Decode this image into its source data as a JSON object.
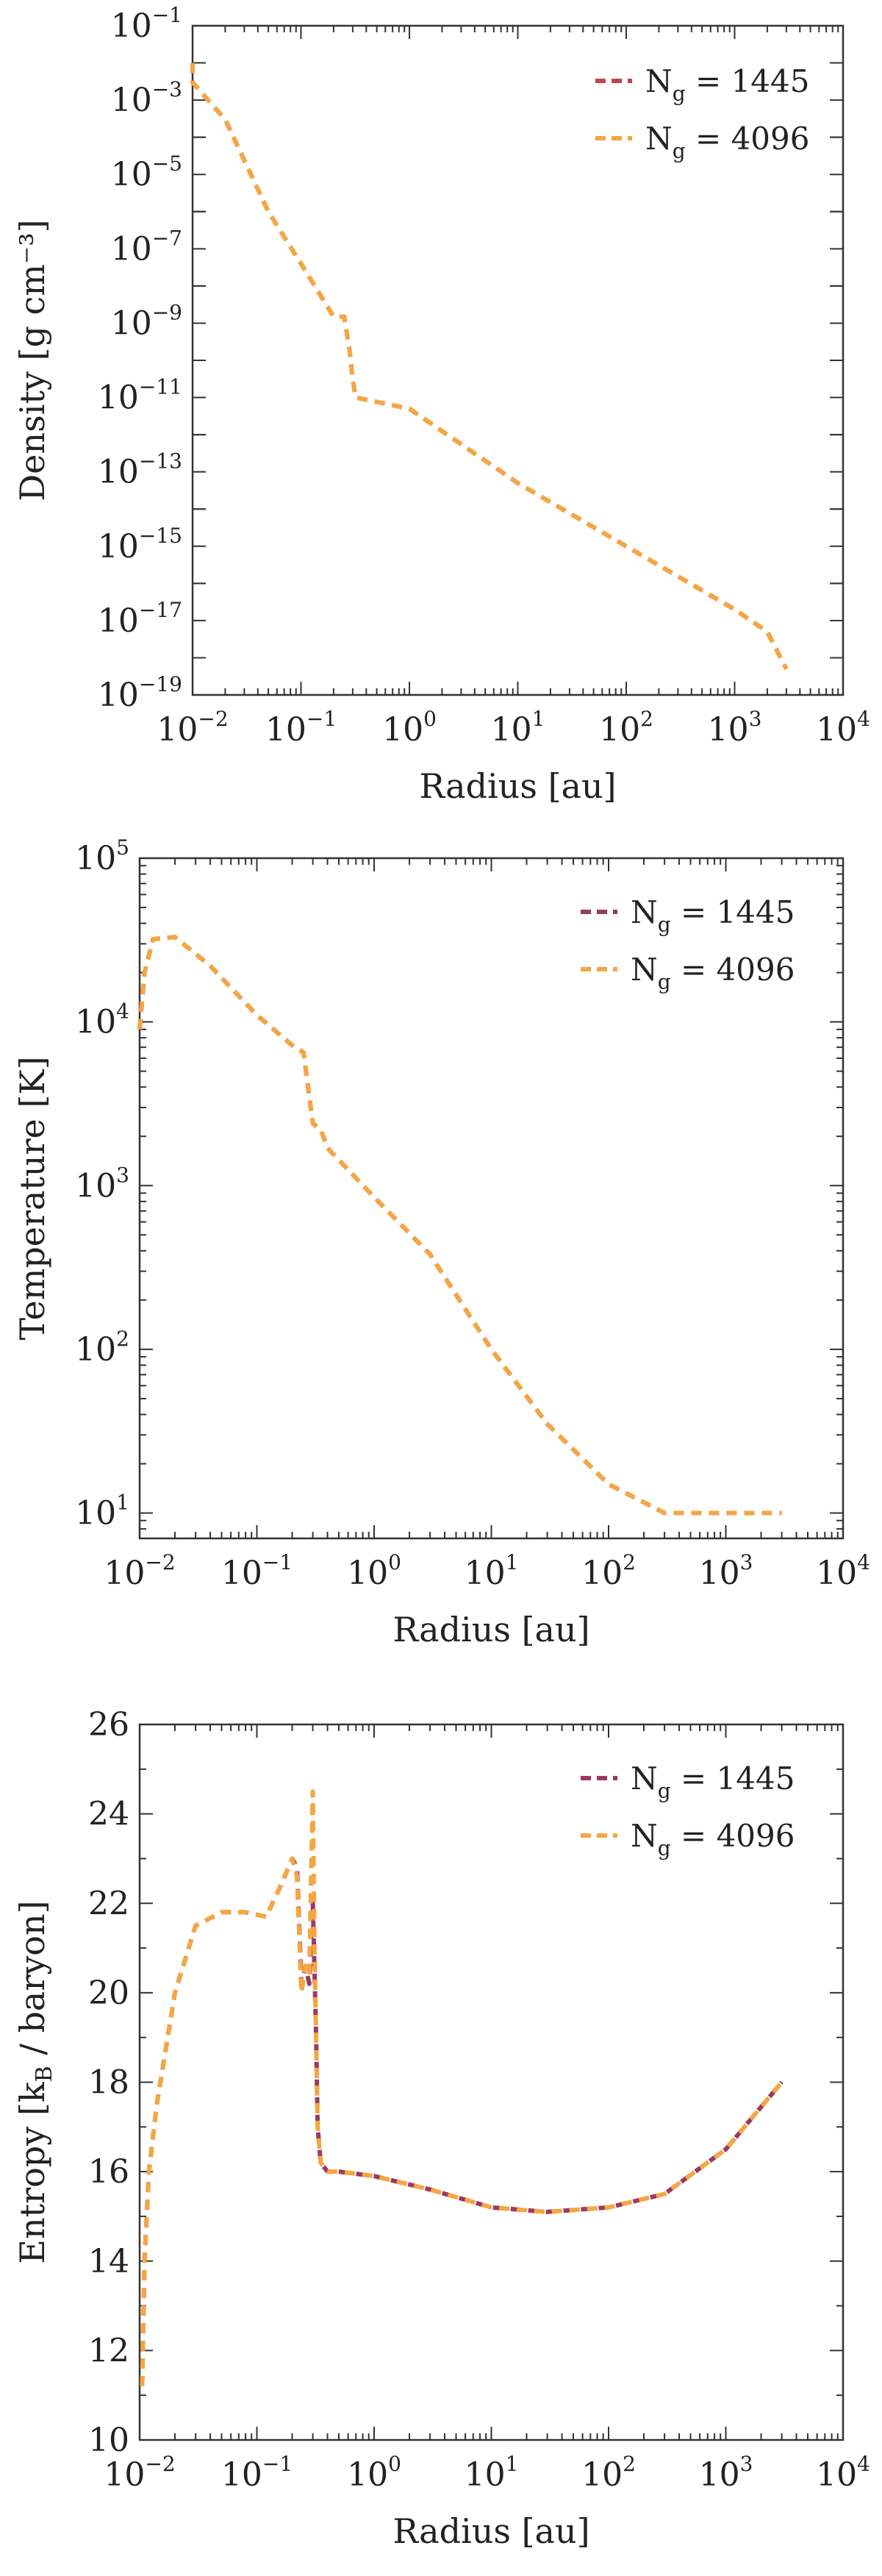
{
  "chart_data": [
    {
      "type": "line",
      "key": "density",
      "xlabel": "Radius [au]",
      "ylabel": "Density [g cm⁻³]",
      "xscale": "log",
      "yscale": "log",
      "xlim": [
        0.01,
        10000
      ],
      "ylim": [
        1e-19,
        0.1
      ],
      "x_ticks": [
        {
          "base": "10",
          "exp": "−2"
        },
        {
          "base": "10",
          "exp": "−1"
        },
        {
          "base": "10",
          "exp": "0"
        },
        {
          "base": "10",
          "exp": "1"
        },
        {
          "base": "10",
          "exp": "2"
        },
        {
          "base": "10",
          "exp": "3"
        },
        {
          "base": "10",
          "exp": "4"
        }
      ],
      "y_ticks": [
        {
          "base": "10",
          "exp": "−19"
        },
        {
          "base": "10",
          "exp": "−17"
        },
        {
          "base": "10",
          "exp": "−15"
        },
        {
          "base": "10",
          "exp": "−13"
        },
        {
          "base": "10",
          "exp": "−11"
        },
        {
          "base": "10",
          "exp": "−9"
        },
        {
          "base": "10",
          "exp": "−7"
        },
        {
          "base": "10",
          "exp": "−5"
        },
        {
          "base": "10",
          "exp": "−3"
        },
        {
          "base": "10",
          "exp": "−1"
        }
      ],
      "legend_position": "top-right",
      "series": [
        {
          "name": "1445",
          "label_main": "N",
          "label_sub": "g",
          "label_rest": " = 1445",
          "color": "#c0444a",
          "x": [
            0.01,
            0.01,
            0.02,
            0.05,
            0.1,
            0.2,
            0.25,
            0.28,
            0.3,
            0.32,
            1,
            10,
            100,
            1000,
            2000,
            3000
          ],
          "y": [
            0.01,
            0.003,
            0.0003,
            1e-06,
            4e-08,
            1.5e-09,
            1.5e-09,
            2e-10,
            3e-11,
            1e-11,
            5e-12,
            5e-14,
            1e-15,
            2e-17,
            5e-18,
            5e-19
          ]
        },
        {
          "name": "4096",
          "label_main": "N",
          "label_sub": "g",
          "label_rest": " = 4096",
          "color": "#f5a642",
          "x": [
            0.01,
            0.01,
            0.02,
            0.05,
            0.1,
            0.2,
            0.25,
            0.28,
            0.3,
            0.32,
            1,
            10,
            100,
            1000,
            2000,
            3000
          ],
          "y": [
            0.01,
            0.003,
            0.0003,
            1e-06,
            4e-08,
            1.5e-09,
            1.5e-09,
            2e-10,
            3e-11,
            1e-11,
            5e-12,
            5e-14,
            1e-15,
            2e-17,
            5e-18,
            5e-19
          ]
        }
      ]
    },
    {
      "type": "line",
      "key": "temperature",
      "xlabel": "Radius [au]",
      "ylabel": "Temperature [K]",
      "xscale": "log",
      "yscale": "log",
      "xlim": [
        0.01,
        10000
      ],
      "ylim": [
        7,
        100000
      ],
      "x_ticks": [
        {
          "base": "10",
          "exp": "−2"
        },
        {
          "base": "10",
          "exp": "−1"
        },
        {
          "base": "10",
          "exp": "0"
        },
        {
          "base": "10",
          "exp": "1"
        },
        {
          "base": "10",
          "exp": "2"
        },
        {
          "base": "10",
          "exp": "3"
        },
        {
          "base": "10",
          "exp": "4"
        }
      ],
      "y_ticks": [
        {
          "base": "10",
          "exp": "1"
        },
        {
          "base": "10",
          "exp": "2"
        },
        {
          "base": "10",
          "exp": "3"
        },
        {
          "base": "10",
          "exp": "4"
        },
        {
          "base": "10",
          "exp": "5"
        }
      ],
      "legend_position": "top-right",
      "series": [
        {
          "name": "1445",
          "label_main": "N",
          "label_sub": "g",
          "label_rest": " = 1445",
          "color": "#9a3a63",
          "x": [
            0.01,
            0.011,
            0.013,
            0.02,
            0.04,
            0.1,
            0.2,
            0.25,
            0.28,
            0.3,
            0.35,
            0.4,
            1,
            3,
            10,
            30,
            100,
            300,
            1000,
            3000
          ],
          "y": [
            9000,
            20000,
            32000,
            33000,
            22000,
            11000,
            7200,
            6500,
            3500,
            2400,
            2200,
            1700,
            850,
            380,
            100,
            35,
            15,
            10,
            10,
            10
          ]
        },
        {
          "name": "4096",
          "label_main": "N",
          "label_sub": "g",
          "label_rest": " = 4096",
          "color": "#f5a642",
          "x": [
            0.01,
            0.011,
            0.013,
            0.02,
            0.04,
            0.1,
            0.2,
            0.25,
            0.28,
            0.3,
            0.35,
            0.4,
            1,
            3,
            10,
            30,
            100,
            300,
            1000,
            3000
          ],
          "y": [
            9000,
            20000,
            32000,
            33000,
            22000,
            11000,
            7200,
            6500,
            3500,
            2400,
            2200,
            1700,
            850,
            380,
            100,
            35,
            15,
            10,
            10,
            10
          ]
        }
      ]
    },
    {
      "type": "line",
      "key": "entropy",
      "xlabel": "Radius [au]",
      "ylabel": "Entropy [k_B / baryon]",
      "ylabel_parts": {
        "pre": "Entropy [k",
        "sub": "B",
        "post": " / baryon]"
      },
      "xscale": "log",
      "yscale": "linear",
      "xlim": [
        0.01,
        10000
      ],
      "ylim": [
        10,
        26
      ],
      "x_ticks": [
        {
          "base": "10",
          "exp": "−2"
        },
        {
          "base": "10",
          "exp": "−1"
        },
        {
          "base": "10",
          "exp": "0"
        },
        {
          "base": "10",
          "exp": "1"
        },
        {
          "base": "10",
          "exp": "2"
        },
        {
          "base": "10",
          "exp": "3"
        },
        {
          "base": "10",
          "exp": "4"
        }
      ],
      "y_ticks": [
        "10",
        "12",
        "14",
        "16",
        "18",
        "20",
        "22",
        "24",
        "26"
      ],
      "legend_position": "top-right",
      "series": [
        {
          "name": "1445",
          "label_main": "N",
          "label_sub": "g",
          "label_rest": " = 1445",
          "color": "#9a3a63",
          "x": [
            0.0105,
            0.011,
            0.012,
            0.014,
            0.02,
            0.03,
            0.05,
            0.08,
            0.12,
            0.16,
            0.2,
            0.22,
            0.24,
            0.26,
            0.28,
            0.3,
            0.31,
            0.32,
            0.33,
            0.35,
            0.4,
            0.5,
            1,
            3,
            10,
            30,
            100,
            300,
            1000,
            3000
          ],
          "y": [
            11.2,
            14,
            16,
            17.5,
            20,
            21.5,
            21.8,
            21.8,
            21.7,
            22.4,
            23,
            22.8,
            20.2,
            20.6,
            20.2,
            22,
            20.5,
            19,
            17,
            16.2,
            16.0,
            16.0,
            15.9,
            15.6,
            15.2,
            15.1,
            15.2,
            15.5,
            16.5,
            18
          ]
        },
        {
          "name": "4096",
          "label_main": "N",
          "label_sub": "g",
          "label_rest": " = 4096",
          "color": "#f5a642",
          "x": [
            0.0105,
            0.011,
            0.012,
            0.014,
            0.02,
            0.03,
            0.05,
            0.08,
            0.12,
            0.16,
            0.2,
            0.22,
            0.24,
            0.26,
            0.28,
            0.3,
            0.31,
            0.32,
            0.33,
            0.35,
            0.4,
            0.5,
            1,
            3,
            10,
            30,
            100,
            300,
            1000,
            3000
          ],
          "y": [
            11.2,
            14,
            16,
            17.5,
            20,
            21.5,
            21.8,
            21.8,
            21.7,
            22.4,
            23,
            22.6,
            20.0,
            20.6,
            20.4,
            24.5,
            21,
            19,
            17,
            16.2,
            16.0,
            16.0,
            15.9,
            15.6,
            15.2,
            15.1,
            15.2,
            15.5,
            16.5,
            18
          ]
        }
      ]
    }
  ]
}
